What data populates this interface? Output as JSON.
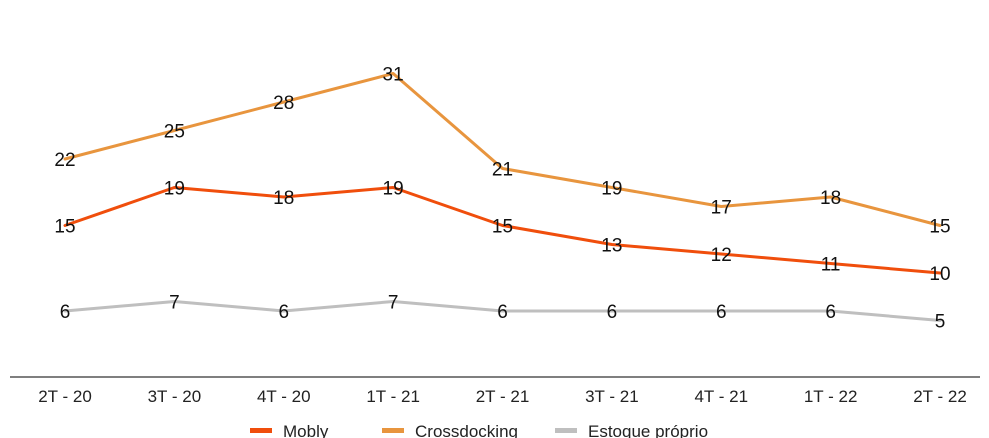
{
  "chart_data": {
    "type": "line",
    "title": "",
    "xlabel": "",
    "ylabel": "",
    "categories": [
      "2T - 20",
      "3T - 20",
      "4T - 20",
      "1T - 21",
      "2T - 21",
      "3T - 21",
      "4T - 21",
      "1T - 22",
      "2T - 22"
    ],
    "series": [
      {
        "name": "Mobly",
        "color": "#f04e0c",
        "values": [
          15,
          19,
          18,
          19,
          15,
          13,
          12,
          11,
          10
        ]
      },
      {
        "name": "Crossdocking",
        "color": "#e8953e",
        "values": [
          22,
          25,
          28,
          31,
          21,
          19,
          17,
          18,
          15
        ]
      },
      {
        "name": "Estoque próprio",
        "color": "#bfbfbf",
        "values": [
          6,
          7,
          6,
          7,
          6,
          6,
          6,
          6,
          5
        ]
      }
    ],
    "ylim": [
      0,
      33
    ],
    "grid": false,
    "legend_position": "bottom"
  }
}
